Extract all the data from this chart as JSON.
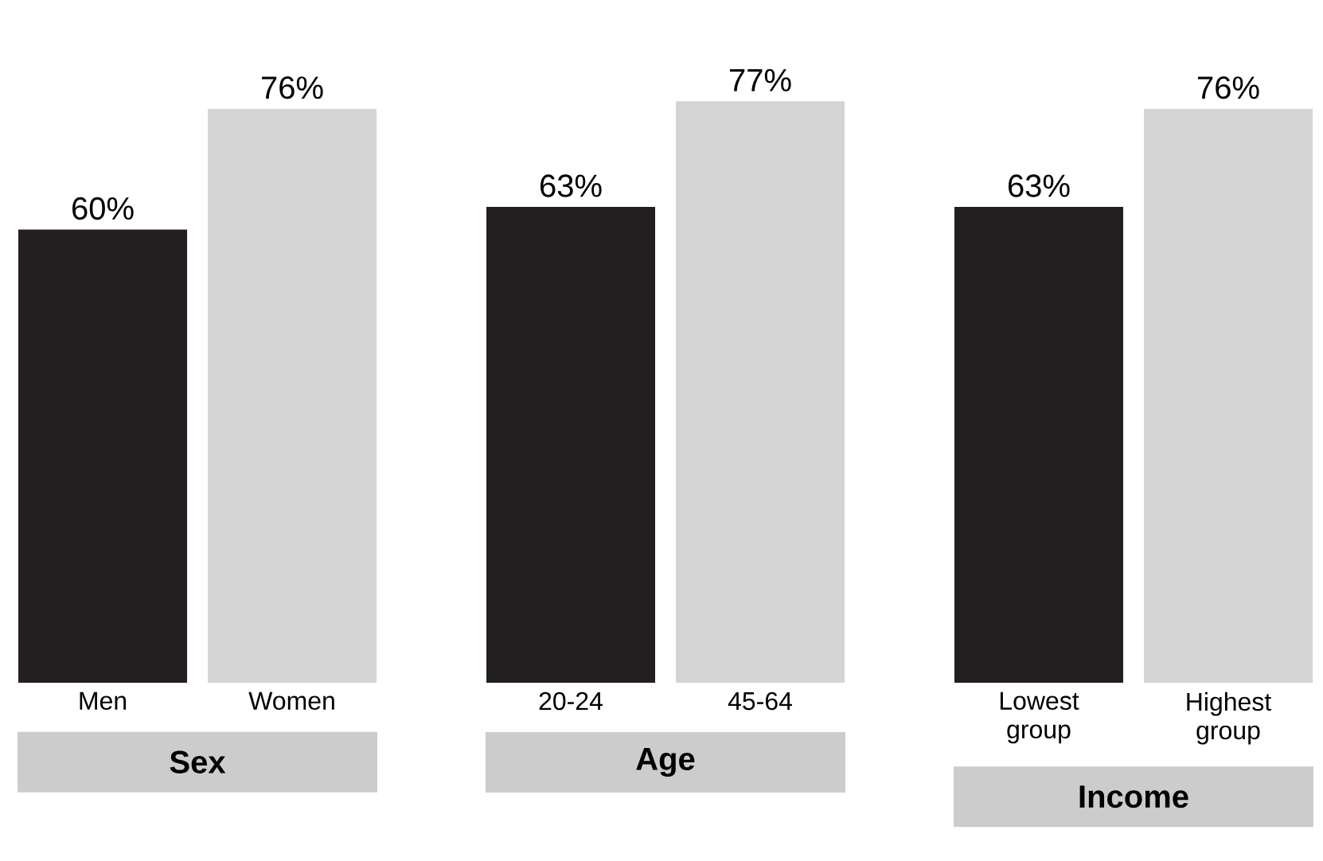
{
  "chart_data": [
    {
      "type": "bar",
      "xlabel": "Sex",
      "categories": [
        "Men",
        "Women"
      ],
      "values": [
        60,
        76
      ],
      "colors": [
        "#231f20",
        "#d4d4d4"
      ],
      "value_labels": [
        "60%",
        "76%"
      ]
    },
    {
      "type": "bar",
      "xlabel": "Age",
      "categories": [
        "20-24",
        "45-64"
      ],
      "values": [
        63,
        77
      ],
      "colors": [
        "#231f20",
        "#d4d4d4"
      ],
      "value_labels": [
        "63%",
        "77%"
      ]
    },
    {
      "type": "bar",
      "xlabel": "Income",
      "categories": [
        "Lowest group",
        "Highest group"
      ],
      "values": [
        63,
        76
      ],
      "colors": [
        "#231f20",
        "#d4d4d4"
      ],
      "value_labels": [
        "63%",
        "76%"
      ]
    }
  ]
}
